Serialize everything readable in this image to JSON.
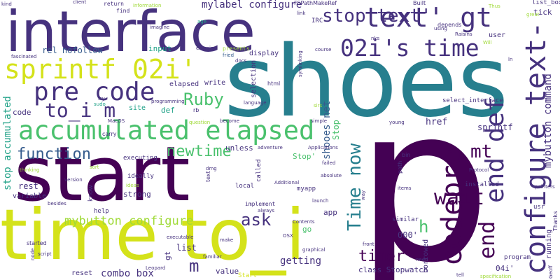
{
  "colors": {
    "background": "#ffffff",
    "purple": "#440154",
    "indigo": "#46327e",
    "blue": "#365c8d",
    "teal": "#277f8e",
    "green": "#1fa187",
    "lightgreen": "#4ac16d",
    "lime": "#a0da39",
    "yellow": "#d4e21a"
  },
  "words": {
    "p": "p",
    "shoes": "shoes",
    "start": "start",
    "time_to_i": "time to_i",
    "interface": "interface",
    "accumulated_elapsed": "accumulated elapsed",
    "sprintf_02i": "sprintf 02i'",
    "text_gt": "text' gt",
    "configure_text": "configure text-",
    "pre_code": "pre code",
    "s02i_time": "02i's time",
    "codepre": "codepre",
    "end_def": "end def",
    "stop_text": "stop text'",
    "to_i_m": "to_i m",
    "function": "function",
    "newtime": "newtime",
    "wait": "wait",
    "mt": "mt",
    "end": "end",
    "time_now": "Time now",
    "ruby": "Ruby",
    "ask": "ask",
    "timer": "timer",
    "h": "h",
    "m": "m",
    "mybutton_configure": "mybutton configure",
    "stop_accumulated": "stop accumulated",
    "mylabel_configure": "mylabel configure",
    "mybutton_command": "mybutton command",
    "combo_box": "combo box",
    "getting": "getting",
    "rel_nofollow": "rel nofollow",
    "shooes_net": "shooes net",
    "stop_word": "Stop",
    "kind": "kind",
    "return": "return",
    "find": "find",
    "information": "information",
    "fspathmakeref": "FSPathMakeRef",
    "imagine": "imagine",
    "age": "age",
    "link": "link",
    "irc": "IRC",
    "depends": "depends",
    "built": "Built",
    "thus": "Thus",
    "tick": "tick",
    "list_box": "list_box",
    "great": "great",
    "using": "using",
    "raisins": "Raisins",
    "will": "Will",
    "user": "user",
    "nks": "nks",
    "ln": "ln",
    "fascinated": "fascinated",
    "exercise": "exercise",
    "presents": "presents",
    "fried": "fried",
    "docs": "docs",
    "input": "input",
    "display": "display",
    "course": "course",
    "elapsed": "elapsed",
    "write": "write",
    "html": "html",
    "selection": "selection",
    "try": "try",
    "sudo": "sudo",
    "programming": "programming",
    "site": "site",
    "def": "def",
    "rb": "rb",
    "language": "language",
    "sirs": "sirs",
    "select_interface": "select_interface",
    "code": "code",
    "macos": "MacOS",
    "question": "question",
    "become": "become",
    "simple": "simple",
    "young": "young",
    "href": "href",
    "sprintf": "sprintf",
    "carry": "carry",
    "unless": "unless",
    "adventure": "adventure",
    "applications": "Applications",
    "symlinking": "symlinking",
    "executing": "executing",
    "thinking": "thinking",
    "sort": "sort",
    "dmg": "dmg",
    "called": "called",
    "failed": "failed",
    "absolute": "absolute",
    "stop_quote": "Stop'",
    "bin": "bin",
    "path": "path",
    "protocol": "Protocol",
    "pointers": "pointers",
    "ideally": "ideally",
    "version": "version",
    "text": "text",
    "additional": "Additional",
    "installed": "installed",
    "rest": "rest",
    "variable": "variable",
    "local": "local",
    "myapp": "myapp",
    "know": "know",
    "ideas": "ideas",
    "strong": "strong",
    "launch": "launch",
    "items": "items",
    "thanks": "Thanks",
    "running": "running",
    "geoff": "Geoff",
    "besides": "besides",
    "help": "help",
    "implement": "implement",
    "app": "app",
    "usr": "usr",
    "always": "always",
    "contents": "Contents",
    "go": "go",
    "ooo": "000'",
    "list": "list",
    "similar": "similar",
    "make": "make",
    "borrowed": "borrowed",
    "started": "started",
    "osx": "OSX",
    "front": "front",
    "program": "program",
    "executable": "executable",
    "graphical": "graphical",
    "script": "script",
    "gt": "gt",
    "familiar": "familiar",
    "reset": "reset",
    "leopard": "Leopard",
    "value": "value",
    "o4i": "04i'",
    "need": "need",
    "class_stopwatch": "class Stopwatch",
    "start_quote": "Start'",
    "tell": "tell",
    "specification": "specification",
    "client": "client",
    "way": "way",
    "node": "node"
  }
}
